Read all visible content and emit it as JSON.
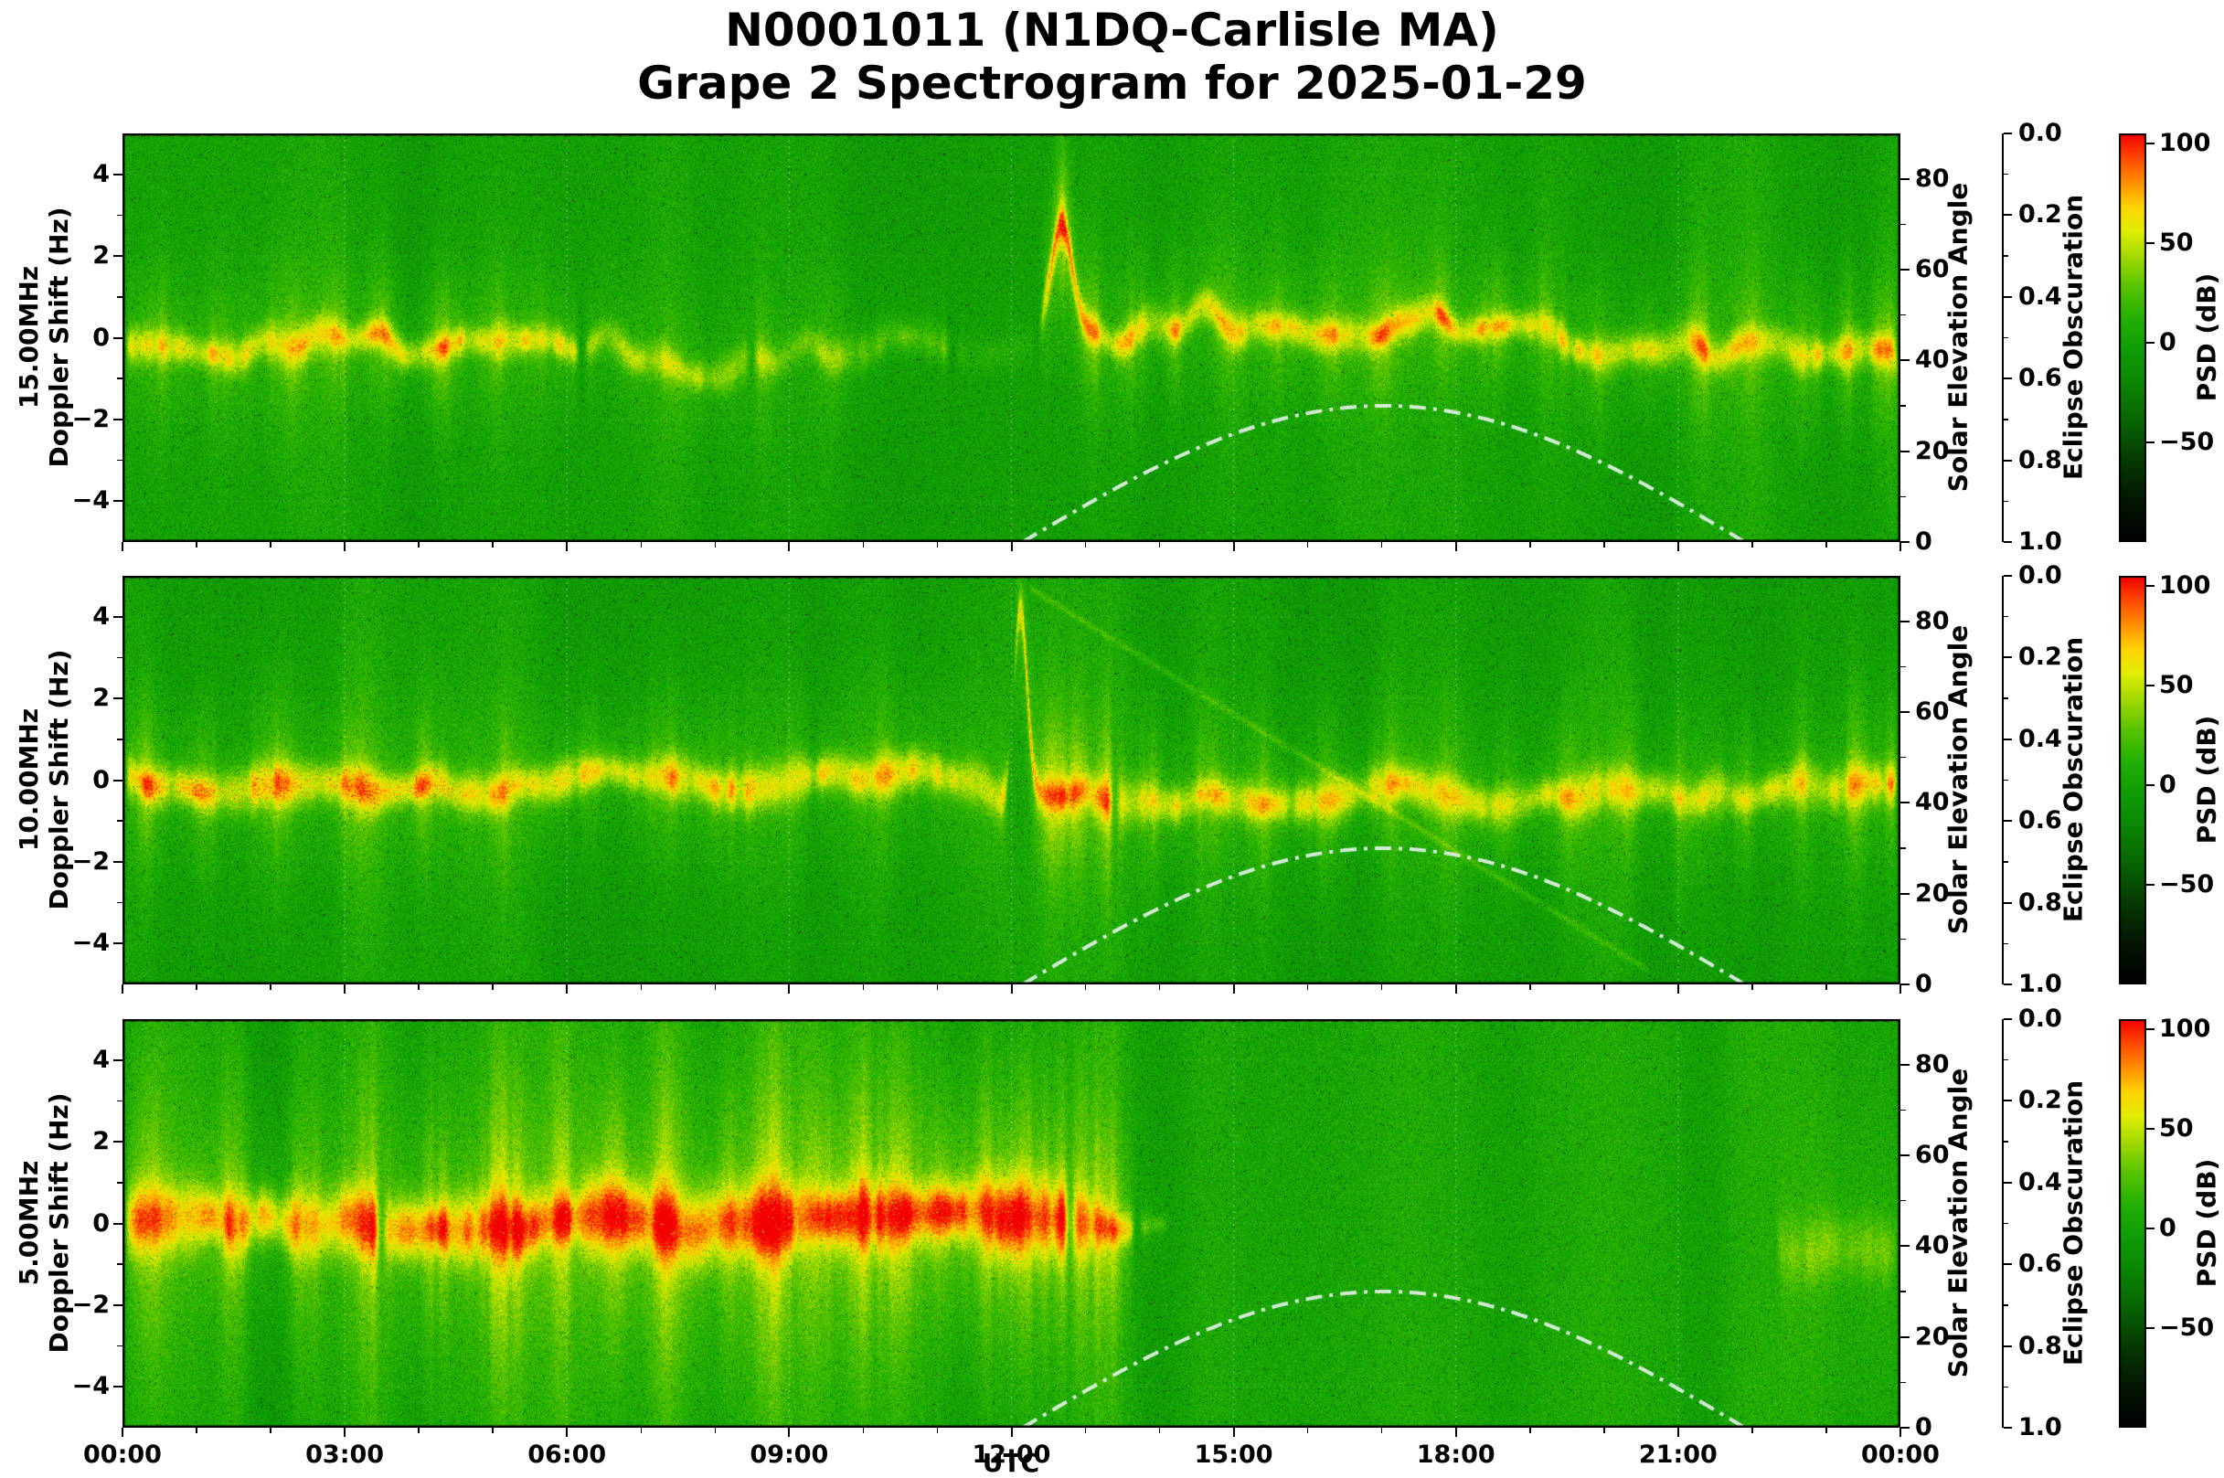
{
  "title": {
    "line1": "N0001011 (N1DQ-Carlisle MA)",
    "line2": "Grape 2 Spectrogram for 2025-01-29"
  },
  "axes": {
    "x": {
      "label": "UTC",
      "tick_labels": [
        "00:00",
        "03:00",
        "06:00",
        "09:00",
        "12:00",
        "15:00",
        "18:00",
        "21:00",
        "00:00"
      ],
      "tick_hours": [
        0,
        3,
        6,
        9,
        12,
        15,
        18,
        21,
        24
      ],
      "range_hours": [
        0,
        24
      ]
    },
    "doppler": {
      "label": "Doppler Shift (Hz)",
      "tick_labels": [
        "4",
        "2",
        "0",
        "−2",
        "−4"
      ],
      "tick_values": [
        4,
        2,
        0,
        -2,
        -4
      ],
      "range": [
        -5,
        5
      ]
    },
    "solar": {
      "label": "Solar Elevation Angle",
      "tick_labels": [
        "0",
        "20",
        "40",
        "60",
        "80"
      ],
      "tick_values": [
        0,
        20,
        40,
        60,
        80
      ],
      "minor_values": [
        10,
        30,
        50,
        70
      ],
      "range": [
        0,
        90
      ]
    },
    "eclipse": {
      "label": "Eclipse Obscuration",
      "tick_labels": [
        "0.0",
        "0.2",
        "0.4",
        "0.6",
        "0.8",
        "1.0"
      ],
      "tick_values": [
        0,
        0.2,
        0.4,
        0.6,
        0.8,
        1.0
      ],
      "minor_values": [
        0.1,
        0.3,
        0.5,
        0.7,
        0.9
      ],
      "range": [
        0,
        1
      ],
      "inverted": true
    },
    "psd": {
      "label": "PSD (dB)",
      "tick_labels": [
        "100",
        "50",
        "0",
        "−50"
      ],
      "tick_values": [
        100,
        50,
        0,
        -50
      ],
      "range": [
        -100,
        105
      ]
    }
  },
  "chart_data": {
    "type": "heatmap",
    "subtype": "doppler_spectrogram",
    "station_id": "N0001011",
    "station": "N1DQ-Carlisle MA",
    "date": "2025-01-29",
    "x_axis": "UTC hours 0 to 24",
    "y_axis": "Doppler shift -5 to +5 Hz",
    "color_axis": "PSD (dB), -100 to 105, black-green-yellow-red colormap",
    "solar_elevation_curve": {
      "style": "white dash-dot",
      "sunrise_utc_h": 12.15,
      "sunset_utc_h": 21.9,
      "max_elevation_deg": 30,
      "drawn_on_all_panels": true
    },
    "eclipse_obscuration_curve": {
      "visible": false
    },
    "colormap": [
      [
        0.0,
        "#000000"
      ],
      [
        0.1,
        "#041503"
      ],
      [
        0.2,
        "#063a02"
      ],
      [
        0.3,
        "#086603"
      ],
      [
        0.4,
        "#0b8a04"
      ],
      [
        0.47,
        "#0f9d06"
      ],
      [
        0.54,
        "#1fae04"
      ],
      [
        0.62,
        "#55c300"
      ],
      [
        0.7,
        "#a3da00"
      ],
      [
        0.76,
        "#e0ee00"
      ],
      [
        0.82,
        "#ffd400"
      ],
      [
        0.88,
        "#ff9000"
      ],
      [
        0.94,
        "#ff4800"
      ],
      [
        1.0,
        "#f20000"
      ]
    ],
    "panels": [
      {
        "ylabel_line1": "15.00MHz",
        "frequency_mhz": 15.0,
        "description": "Yellow Doppler trace wandering between -1 and +0.5 Hz from 00:00-08:30, faint 08:30-12:20, strong near +0.1 Hz from 12:30-24:00 with many vertical scatter plumes; brief upward curl to +3 Hz near 12:40.",
        "render": {
          "seed": 11,
          "base": 0,
          "trace_center": -0.3,
          "wander_amp": 0.75,
          "trace_width": 0.27,
          "plume_h": 1.5,
          "segments": [
            [
              0,
              6.2,
              46
            ],
            [
              6.2,
              8.5,
              34
            ],
            [
              8.5,
              11.2,
              26
            ],
            [
              11.2,
              12.35,
              9
            ],
            [
              12.35,
              24,
              48
            ]
          ],
          "seg_center": [
            [
              12.35,
              24,
              0.4
            ]
          ],
          "excursions": [
            [
              12.68,
              0.14,
              2.6
            ]
          ],
          "plumes": [
            [
              0.5,
              0.12,
              22
            ],
            [
              1.3,
              0.1,
              18
            ],
            [
              2.2,
              0.15,
              26
            ],
            [
              2.9,
              0.12,
              24
            ],
            [
              3.5,
              0.12,
              26
            ],
            [
              4.3,
              0.15,
              28
            ],
            [
              5.0,
              0.12,
              20
            ],
            [
              5.6,
              0.1,
              14
            ],
            [
              7.5,
              0.12,
              14
            ],
            [
              8.6,
              0.1,
              16
            ],
            [
              9.6,
              0.12,
              14
            ],
            [
              12.7,
              0.12,
              34
            ],
            [
              13.1,
              0.1,
              28
            ],
            [
              13.7,
              0.1,
              20
            ],
            [
              14.2,
              0.1,
              22
            ],
            [
              14.9,
              0.1,
              20
            ],
            [
              15.6,
              0.12,
              22
            ],
            [
              16.3,
              0.1,
              20
            ],
            [
              17.0,
              0.12,
              22
            ],
            [
              17.8,
              0.1,
              18
            ],
            [
              18.5,
              0.12,
              22
            ],
            [
              19.2,
              0.1,
              18
            ],
            [
              19.9,
              0.12,
              20
            ],
            [
              20.6,
              0.1,
              18
            ],
            [
              21.3,
              0.12,
              20
            ],
            [
              22.0,
              0.1,
              18
            ],
            [
              22.7,
              0.12,
              20
            ],
            [
              23.3,
              0.1,
              22
            ],
            [
              23.8,
              0.12,
              26
            ]
          ]
        }
      },
      {
        "ylabel_line1": "10.00MHz",
        "frequency_mhz": 10.0,
        "description": "Strong yellow-orange trace near 0 Hz all day with red flecks 00:30-04:30; sharp spike to +4.5 Hz near 12:05 followed by bright plumes 12:30-13:30; trace slightly below 0 Hz after 13:00; faint thin descending secondary trace after 12:15.",
        "render": {
          "seed": 22,
          "base": 0,
          "trace_center": -0.05,
          "wander_amp": 0.45,
          "trace_width": 0.32,
          "plume_h": 1.9,
          "segments": [
            [
              0,
              12.0,
              52
            ],
            [
              12.0,
              13.4,
              50
            ],
            [
              13.4,
              24,
              46
            ]
          ],
          "seg_center": [
            [
              13.0,
              24,
              -0.2
            ]
          ],
          "excursions": [
            [
              12.12,
              0.09,
              4.6
            ]
          ],
          "hot_spots": {
            "t0": 0.3,
            "t1": 4.6
          },
          "extra_trace": {
            "t0": 12.25,
            "t1": 20.6,
            "y0": 4.7,
            "slope": -1.12,
            "width": 0.07,
            "strength": 15
          },
          "plumes": [
            [
              0.35,
              0.12,
              26
            ],
            [
              1.1,
              0.12,
              22
            ],
            [
              2.05,
              0.15,
              26
            ],
            [
              3.1,
              0.12,
              22
            ],
            [
              4.05,
              0.12,
              20
            ],
            [
              5.2,
              0.12,
              18
            ],
            [
              6.3,
              0.12,
              16
            ],
            [
              7.3,
              0.35,
              16
            ],
            [
              8.05,
              0.15,
              18
            ],
            [
              9.0,
              0.12,
              16
            ],
            [
              10.2,
              0.12,
              12
            ],
            [
              12.55,
              0.14,
              42
            ],
            [
              12.9,
              0.12,
              40
            ],
            [
              13.3,
              0.12,
              34
            ],
            [
              13.9,
              0.1,
              26
            ],
            [
              14.6,
              0.12,
              22
            ],
            [
              15.4,
              0.1,
              20
            ],
            [
              16.2,
              0.12,
              20
            ],
            [
              17.1,
              0.1,
              20
            ],
            [
              17.9,
              0.12,
              20
            ],
            [
              18.7,
              0.1,
              18
            ],
            [
              19.5,
              0.12,
              20
            ],
            [
              20.3,
              0.1,
              18
            ],
            [
              21.1,
              0.12,
              20
            ],
            [
              21.9,
              0.1,
              18
            ],
            [
              22.7,
              0.12,
              20
            ],
            [
              23.4,
              0.12,
              22
            ],
            [
              23.85,
              0.1,
              20
            ]
          ]
        }
      },
      {
        "ylabel_line1": "5.00MHz",
        "frequency_mhz": 5.0,
        "description": "Broad orange-red trace at 0 Hz from 00:00 to about 13:45 with tall vertical scatter plumes spanning the full band; signal disappears (daytime absorption) 14:00-22:20; faint yellow patch near -0.5 Hz returns after 22:20.",
        "render": {
          "seed": 33,
          "base": 2,
          "trace_center": 0.0,
          "wander_amp": 0.3,
          "trace_width": 0.5,
          "plume_h": 3.2,
          "stripes_amp": 9,
          "segments": [
            [
              0,
              3.5,
              56
            ],
            [
              3.5,
              12.8,
              62
            ],
            [
              12.8,
              13.7,
              50
            ],
            [
              13.7,
              14.15,
              24
            ],
            [
              22.3,
              24,
              22
            ]
          ],
          "seg_center": [
            [
              22.3,
              24,
              -0.45
            ]
          ],
          "taper": [
            12.9,
            14.3
          ],
          "plumes": [
            [
              0.4,
              0.15,
              26
            ],
            [
              1.5,
              0.15,
              24
            ],
            [
              2.5,
              0.15,
              26
            ],
            [
              3.4,
              0.15,
              28
            ],
            [
              4.2,
              0.15,
              30
            ],
            [
              5.15,
              0.2,
              44
            ],
            [
              5.9,
              0.15,
              26
            ],
            [
              6.6,
              0.18,
              32
            ],
            [
              7.35,
              0.18,
              36
            ],
            [
              8.1,
              0.15,
              30
            ],
            [
              8.75,
              0.18,
              40
            ],
            [
              9.35,
              0.15,
              34
            ],
            [
              9.95,
              0.18,
              38
            ],
            [
              10.55,
              0.18,
              42
            ],
            [
              11.15,
              0.15,
              34
            ],
            [
              11.7,
              0.18,
              38
            ],
            [
              12.3,
              0.2,
              42
            ],
            [
              12.9,
              0.18,
              38
            ],
            [
              13.3,
              0.15,
              30
            ]
          ]
        }
      }
    ]
  }
}
